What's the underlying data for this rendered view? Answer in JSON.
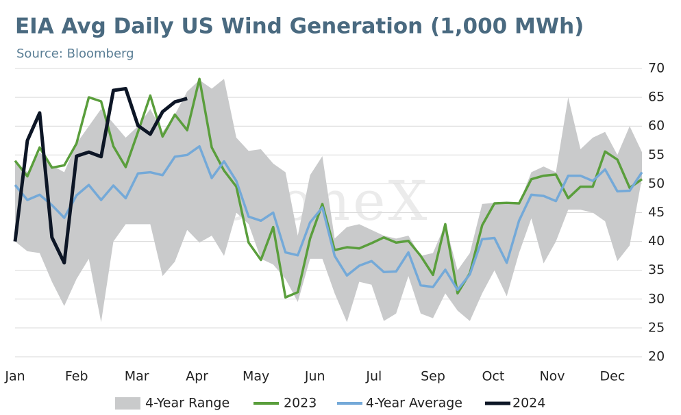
{
  "chart_data": {
    "type": "line",
    "title": "EIA Avg Daily US Wind Generation (1,000 MWh)",
    "subtitle": "Source: Bloomberg",
    "watermark": "StoneX",
    "xlim": [
      0,
      51
    ],
    "xticks": [
      {
        "value": 0,
        "label": "Jan"
      },
      {
        "value": 5.0,
        "label": "Feb"
      },
      {
        "value": 9.9,
        "label": "Mar"
      },
      {
        "value": 14.8,
        "label": "Apr"
      },
      {
        "value": 19.6,
        "label": "May"
      },
      {
        "value": 24.4,
        "label": "Jun"
      },
      {
        "value": 29.2,
        "label": "Jul"
      },
      {
        "value": 34.0,
        "label": "Sep"
      },
      {
        "value": 38.9,
        "label": "Oct"
      },
      {
        "value": 43.7,
        "label": "Nov"
      },
      {
        "value": 48.6,
        "label": "Dec"
      }
    ],
    "ylim": [
      20,
      70
    ],
    "yticks": [
      20,
      25,
      30,
      35,
      40,
      45,
      50,
      55,
      60,
      65,
      70
    ],
    "grid": true,
    "legend": "bottom",
    "x": [
      0,
      1,
      2,
      3,
      4,
      5,
      6,
      7,
      8,
      9,
      10,
      11,
      12,
      13,
      14,
      15,
      16,
      17,
      18,
      19,
      20,
      21,
      22,
      23,
      24,
      25,
      26,
      27,
      28,
      29,
      30,
      31,
      32,
      33,
      34,
      35,
      36,
      37,
      38,
      39,
      40,
      41,
      42,
      43,
      44,
      45,
      46,
      47,
      48,
      49,
      50,
      51
    ],
    "range": {
      "name": "4-Year Range",
      "color": "#c9cacb",
      "high": [
        54,
        52,
        55.5,
        53.2,
        52,
        57,
        60,
        63,
        60.5,
        58,
        60,
        63,
        59,
        62,
        66,
        68,
        66.5,
        68.2,
        58,
        55.7,
        56,
        53.5,
        52,
        41,
        51.5,
        54.8,
        40.5,
        42.5,
        43,
        42,
        41,
        40.5,
        41,
        37.5,
        38,
        43,
        35,
        38,
        46.5,
        46.7,
        46.7,
        46.6,
        52,
        53,
        52,
        65,
        56,
        58,
        59,
        55,
        60,
        55.5
      ],
      "low": [
        40,
        38.3,
        38,
        33,
        28.8,
        33.5,
        37,
        26,
        40,
        43,
        43,
        43,
        34,
        36.5,
        42,
        39.8,
        41,
        37.5,
        45,
        43,
        37,
        36,
        33.5,
        29.5,
        37,
        37,
        31,
        26,
        33,
        32.5,
        26.2,
        27.5,
        34,
        27.5,
        26.7,
        31,
        28,
        26.2,
        31,
        35,
        30.5,
        38,
        44,
        36.2,
        40,
        45.5,
        45.5,
        45,
        43.5,
        36.6,
        39.3,
        51
      ]
    },
    "series": [
      {
        "name": "2023",
        "color": "#5a9e3c",
        "values": [
          54,
          51.3,
          56.3,
          52.8,
          53.2,
          57,
          65,
          64.3,
          56.5,
          52.9,
          59,
          65.3,
          58.2,
          62,
          59.3,
          68.2,
          56.3,
          52.3,
          49.5,
          39.8,
          36.8,
          42.5,
          30.3,
          31.2,
          40.5,
          46.5,
          38.5,
          39,
          38.8,
          39.7,
          40.7,
          39.8,
          40.1,
          37.5,
          34.2,
          43,
          31,
          34.5,
          42.8,
          46.6,
          46.7,
          46.6,
          50.8,
          51.4,
          51.6,
          47.5,
          49.5,
          49.5,
          55.6,
          54.2,
          49.3,
          50.8
        ]
      },
      {
        "name": "4-Year Average",
        "color": "#74a9d8",
        "values": [
          49.8,
          47.2,
          48.1,
          46.3,
          44.1,
          48,
          49.8,
          47.2,
          49.7,
          47.5,
          51.8,
          52,
          51.5,
          54.7,
          55,
          56.5,
          51,
          53.9,
          50.5,
          44.3,
          43.6,
          45,
          38.1,
          37.6,
          43.3,
          45.9,
          37.5,
          34.1,
          35.8,
          36.6,
          34.7,
          34.8,
          38.1,
          32.4,
          32.1,
          35.1,
          31.6,
          34.3,
          40.4,
          40.6,
          36.3,
          43.6,
          48.1,
          47.9,
          47,
          51.4,
          51.4,
          50.5,
          52.5,
          48.7,
          48.8,
          52
        ]
      },
      {
        "name": "2024",
        "color": "#0d1626",
        "values": [
          40,
          57.5,
          62.3,
          40.7,
          36.3,
          54.8,
          55.5,
          54.7,
          66.2,
          66.5,
          60.1,
          58.6,
          62.5,
          64.2,
          64.8,
          null,
          null,
          null,
          null,
          null,
          null,
          null,
          null,
          null,
          null,
          null,
          null,
          null,
          null,
          null,
          null,
          null,
          null,
          null,
          null,
          null,
          null,
          null,
          null,
          null,
          null,
          null,
          null,
          null,
          null,
          null,
          null,
          null,
          null,
          null,
          null,
          null
        ]
      }
    ]
  }
}
